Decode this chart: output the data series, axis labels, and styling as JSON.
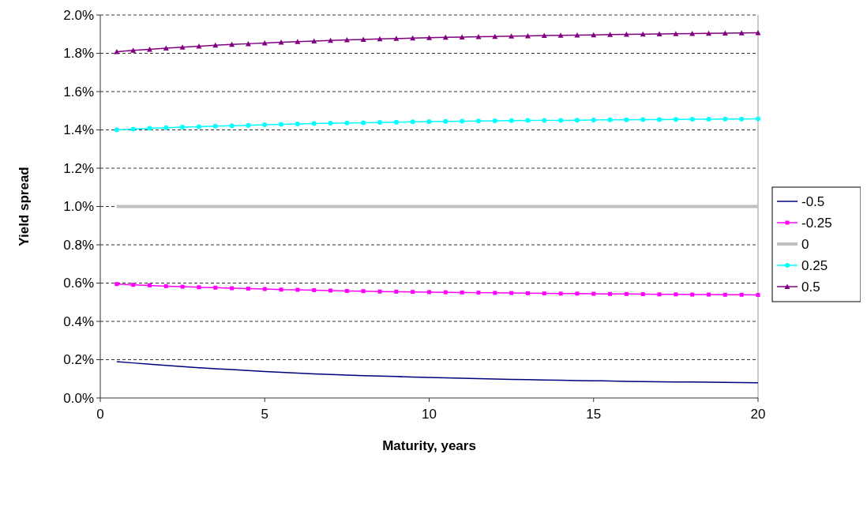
{
  "chart_data": {
    "type": "line",
    "xlabel": "Maturity, years",
    "ylabel": "Yield spread",
    "x": [
      0.5,
      1,
      1.5,
      2,
      2.5,
      3,
      3.5,
      4,
      4.5,
      5,
      5.5,
      6,
      6.5,
      7,
      7.5,
      8,
      8.5,
      9,
      9.5,
      10,
      10.5,
      11,
      11.5,
      12,
      12.5,
      13,
      13.5,
      14,
      14.5,
      15,
      15.5,
      16,
      16.5,
      17,
      17.5,
      18,
      18.5,
      19,
      19.5,
      20
    ],
    "series": [
      {
        "name": "-0.5",
        "color": "#000080",
        "marker": "none",
        "values": [
          0.19,
          0.183,
          0.176,
          0.17,
          0.164,
          0.158,
          0.153,
          0.148,
          0.143,
          0.138,
          0.134,
          0.13,
          0.126,
          0.123,
          0.12,
          0.117,
          0.114,
          0.112,
          0.109,
          0.107,
          0.105,
          0.103,
          0.101,
          0.099,
          0.097,
          0.096,
          0.094,
          0.093,
          0.091,
          0.09,
          0.089,
          0.087,
          0.086,
          0.085,
          0.084,
          0.083,
          0.082,
          0.081,
          0.08,
          0.079
        ]
      },
      {
        "name": "-0.25",
        "color": "#ff00ff",
        "marker": "square",
        "values": [
          0.595,
          0.591,
          0.588,
          0.584,
          0.581,
          0.578,
          0.576,
          0.573,
          0.571,
          0.569,
          0.566,
          0.565,
          0.563,
          0.561,
          0.559,
          0.558,
          0.556,
          0.555,
          0.554,
          0.553,
          0.552,
          0.551,
          0.55,
          0.549,
          0.548,
          0.547,
          0.546,
          0.545,
          0.545,
          0.544,
          0.543,
          0.543,
          0.542,
          0.541,
          0.541,
          0.54,
          0.54,
          0.539,
          0.539,
          0.538
        ]
      },
      {
        "name": "0",
        "color": "#c0c0c0",
        "marker": "none",
        "values": [
          1,
          1,
          1,
          1,
          1,
          1,
          1,
          1,
          1,
          1,
          1,
          1,
          1,
          1,
          1,
          1,
          1,
          1,
          1,
          1,
          1,
          1,
          1,
          1,
          1,
          1,
          1,
          1,
          1,
          1,
          1,
          1,
          1,
          1,
          1,
          1,
          1,
          1,
          1,
          1
        ]
      },
      {
        "name": "0.25",
        "color": "#00ffff",
        "marker": "circle",
        "values": [
          1.4,
          1.404,
          1.408,
          1.411,
          1.414,
          1.417,
          1.42,
          1.422,
          1.424,
          1.427,
          1.429,
          1.431,
          1.433,
          1.435,
          1.436,
          1.437,
          1.439,
          1.44,
          1.442,
          1.443,
          1.444,
          1.445,
          1.446,
          1.447,
          1.448,
          1.449,
          1.45,
          1.45,
          1.451,
          1.452,
          1.453,
          1.453,
          1.454,
          1.454,
          1.455,
          1.456,
          1.456,
          1.457,
          1.457,
          1.458
        ]
      },
      {
        "name": "0.5",
        "color": "#800080",
        "marker": "triangle",
        "values": [
          1.808,
          1.815,
          1.821,
          1.827,
          1.832,
          1.837,
          1.842,
          1.846,
          1.85,
          1.854,
          1.858,
          1.861,
          1.864,
          1.867,
          1.87,
          1.872,
          1.875,
          1.877,
          1.879,
          1.881,
          1.883,
          1.885,
          1.887,
          1.888,
          1.89,
          1.891,
          1.893,
          1.894,
          1.895,
          1.896,
          1.898,
          1.899,
          1.9,
          1.901,
          1.902,
          1.903,
          1.904,
          1.905,
          1.906,
          1.907
        ]
      }
    ],
    "xlim": [
      0,
      20
    ],
    "xticks": [
      0,
      5,
      10,
      15,
      20
    ],
    "ylim": [
      0,
      2
    ],
    "yticks": [
      {
        "value": 0,
        "label": "0.0%"
      },
      {
        "value": 0.2,
        "label": "0.2%"
      },
      {
        "value": 0.4,
        "label": "0.4%"
      },
      {
        "value": 0.6,
        "label": "0.6%"
      },
      {
        "value": 0.8,
        "label": "0.8%"
      },
      {
        "value": 1,
        "label": "1.0%"
      },
      {
        "value": 1.2,
        "label": "1.2%"
      },
      {
        "value": 1.4,
        "label": "1.4%"
      },
      {
        "value": 1.6,
        "label": "1.6%"
      },
      {
        "value": 1.8,
        "label": "1.8%"
      },
      {
        "value": 2,
        "label": "2.0%"
      }
    ],
    "grid": "y",
    "legend": "right",
    "line_style": "solid"
  }
}
